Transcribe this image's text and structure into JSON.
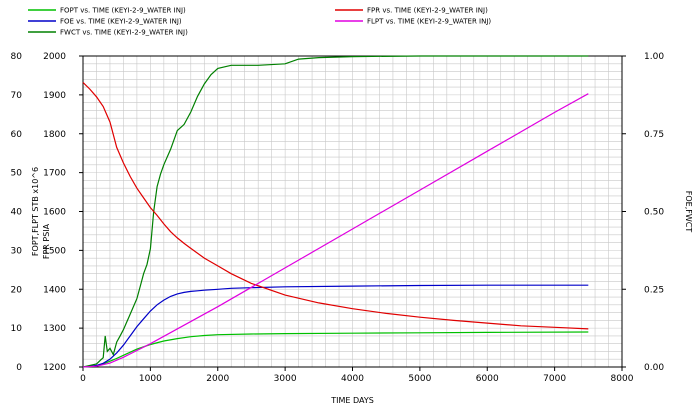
{
  "chart_data": {
    "type": "line",
    "title": "",
    "xlabel": "TIME    DAYS",
    "ylabel_left_1": "FOPT,FLPT    STB    x10^6",
    "ylabel_left_2": "FPR    PSIA",
    "ylabel_right": "FOE,FWCT",
    "xlim": [
      0,
      8000
    ],
    "x_ticks": [
      0,
      1000,
      2000,
      3000,
      4000,
      5000,
      6000,
      7000,
      8000
    ],
    "ylim_left_1": [
      0,
      80
    ],
    "y_ticks_left_1": [
      0,
      10,
      20,
      30,
      40,
      50,
      60,
      70,
      80
    ],
    "ylim_left_2": [
      1200,
      2000
    ],
    "y_ticks_left_2": [
      1200,
      1300,
      1400,
      1500,
      1600,
      1700,
      1800,
      1900,
      2000
    ],
    "ylim_right": [
      0,
      1
    ],
    "y_ticks_right": [
      "0.00",
      "0.25",
      "0.50",
      "0.75",
      "1.00"
    ],
    "grid": true,
    "legend_position": "top",
    "series": [
      {
        "name": "FOPT vs. TIME (KEYI-2-9_WATER INJ)",
        "color": "#00c000",
        "axis": "left1",
        "x": [
          0,
          200,
          300,
          400,
          500,
          600,
          700,
          800,
          1000,
          1200,
          1400,
          1600,
          1800,
          2000,
          2500,
          3000,
          4000,
          5000,
          6000,
          7500
        ],
        "y": [
          0,
          0.3,
          0.8,
          1.5,
          2.2,
          3.0,
          3.8,
          4.6,
          5.8,
          6.7,
          7.3,
          7.8,
          8.1,
          8.3,
          8.5,
          8.6,
          8.7,
          8.8,
          8.9,
          9.0
        ]
      },
      {
        "name": "FOE vs. TIME (KEYI-2-9_WATER INJ)",
        "color": "#0000c8",
        "axis": "right",
        "x": [
          0,
          100,
          200,
          300,
          400,
          500,
          600,
          700,
          800,
          900,
          1000,
          1100,
          1200,
          1300,
          1400,
          1500,
          1600,
          1700,
          1800,
          2000,
          2200,
          2500,
          3000,
          4000,
          5000,
          6000,
          7500
        ],
        "y": [
          0,
          0.002,
          0.005,
          0.012,
          0.025,
          0.045,
          0.07,
          0.1,
          0.13,
          0.155,
          0.18,
          0.2,
          0.215,
          0.227,
          0.235,
          0.24,
          0.243,
          0.245,
          0.247,
          0.25,
          0.253,
          0.255,
          0.258,
          0.26,
          0.262,
          0.263,
          0.263
        ]
      },
      {
        "name": "FWCT vs. TIME (KEYI-2-9_WATER INJ)",
        "color": "#008000",
        "axis": "right",
        "x": [
          0,
          200,
          250,
          300,
          330,
          360,
          400,
          450,
          500,
          550,
          600,
          700,
          800,
          850,
          900,
          950,
          1000,
          1050,
          1100,
          1150,
          1200,
          1300,
          1400,
          1500,
          1600,
          1700,
          1800,
          1900,
          2000,
          2200,
          2500,
          2600,
          3000,
          3200,
          3500,
          4000,
          5000,
          6000,
          7500
        ],
        "y": [
          0,
          0.01,
          0.02,
          0.03,
          0.1,
          0.05,
          0.06,
          0.04,
          0.08,
          0.1,
          0.12,
          0.17,
          0.22,
          0.26,
          0.3,
          0.33,
          0.38,
          0.5,
          0.58,
          0.62,
          0.65,
          0.7,
          0.76,
          0.78,
          0.82,
          0.87,
          0.91,
          0.94,
          0.96,
          0.97,
          0.97,
          0.97,
          0.975,
          0.99,
          0.995,
          0.998,
          1.0,
          1.0,
          1.0
        ]
      },
      {
        "name": "FPR vs. TIME (KEYI-2-9_WATER INJ)",
        "color": "#e00000",
        "axis": "left2",
        "x": [
          0,
          100,
          200,
          300,
          400,
          500,
          600,
          700,
          800,
          900,
          1000,
          1100,
          1200,
          1300,
          1400,
          1500,
          1600,
          1800,
          2000,
          2200,
          2500,
          3000,
          3500,
          4000,
          4500,
          5000,
          5500,
          6000,
          6500,
          7000,
          7500
        ],
        "y": [
          1932,
          1915,
          1895,
          1870,
          1830,
          1765,
          1725,
          1690,
          1660,
          1635,
          1610,
          1590,
          1568,
          1548,
          1532,
          1518,
          1505,
          1480,
          1460,
          1440,
          1415,
          1385,
          1365,
          1350,
          1338,
          1328,
          1320,
          1313,
          1306,
          1302,
          1298
        ]
      },
      {
        "name": "FLPT vs. TIME (KEYI-2-9_WATER INJ)",
        "color": "#e000e0",
        "axis": "left1",
        "x": [
          0,
          200,
          400,
          600,
          1000,
          2000,
          3000,
          4000,
          5000,
          6000,
          7000,
          7500
        ],
        "y": [
          0,
          0.2,
          1.0,
          2.5,
          6.0,
          15.5,
          25.5,
          35.5,
          45.5,
          55.5,
          65.5,
          70.3
        ]
      }
    ]
  }
}
